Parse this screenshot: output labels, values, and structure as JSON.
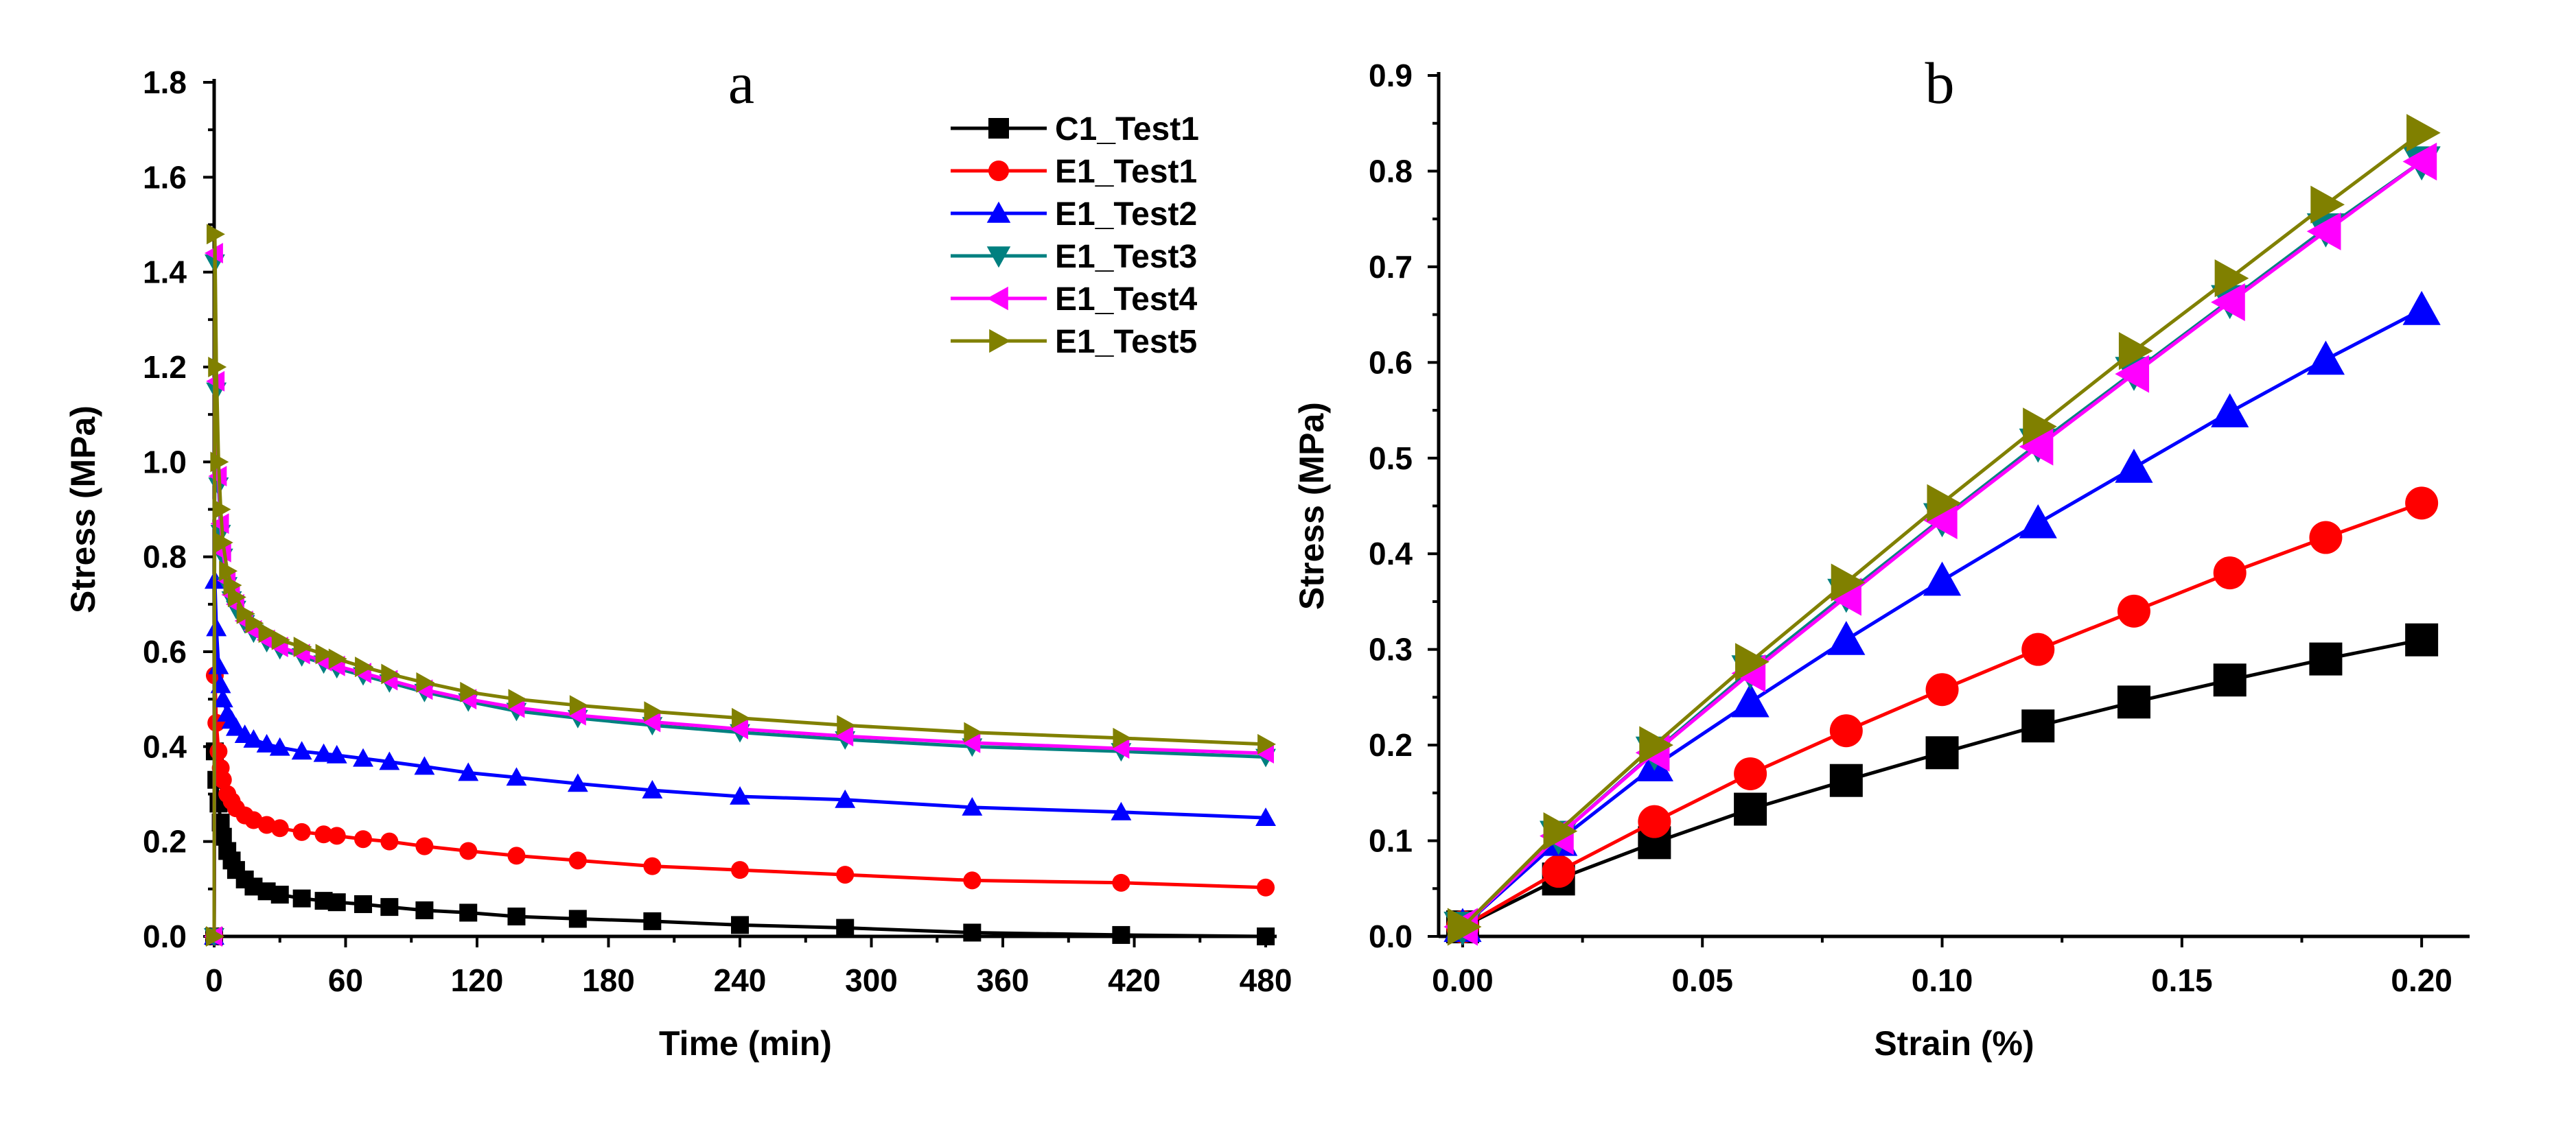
{
  "chart_data": [
    {
      "panel": "a",
      "type": "line",
      "title": "a",
      "xlabel": "Time (min)",
      "ylabel": "Stress (MPa)",
      "xlim": [
        0,
        485
      ],
      "ylim": [
        0,
        1.8
      ],
      "xticks": [
        0,
        60,
        120,
        180,
        240,
        300,
        360,
        420,
        480
      ],
      "yticks": [
        0.0,
        0.2,
        0.4,
        0.6,
        0.8,
        1.0,
        1.2,
        1.4,
        1.6,
        1.8
      ],
      "ytick_labels": [
        "0.0",
        "0.2",
        "0.4",
        "0.6",
        "0.8",
        "1.0",
        "1.2",
        "1.4",
        "1.6",
        "1.8"
      ],
      "legend_position": "top-right",
      "series": [
        {
          "name": "C1_Test1",
          "color": "#000000",
          "marker": "square",
          "x": [
            0,
            0.3,
            1,
            2,
            3,
            4,
            6,
            8,
            10,
            14,
            18,
            24,
            30,
            40,
            50,
            56,
            68,
            80,
            96,
            116,
            138,
            166,
            200,
            240,
            288,
            346,
            414,
            480
          ],
          "y": [
            0,
            0.39,
            0.33,
            0.28,
            0.24,
            0.21,
            0.18,
            0.16,
            0.14,
            0.12,
            0.105,
            0.095,
            0.088,
            0.08,
            0.075,
            0.072,
            0.068,
            0.062,
            0.055,
            0.05,
            0.042,
            0.037,
            0.032,
            0.024,
            0.018,
            0.008,
            0.003,
            0.0
          ]
        },
        {
          "name": "E1_Test1",
          "color": "#ff0000",
          "marker": "circle",
          "x": [
            0,
            0.3,
            1,
            2,
            3,
            4,
            6,
            8,
            10,
            14,
            18,
            24,
            30,
            40,
            50,
            56,
            68,
            80,
            96,
            116,
            138,
            166,
            200,
            240,
            288,
            346,
            414,
            480
          ],
          "y": [
            0,
            0.55,
            0.45,
            0.39,
            0.355,
            0.33,
            0.3,
            0.285,
            0.27,
            0.255,
            0.245,
            0.235,
            0.228,
            0.22,
            0.215,
            0.212,
            0.205,
            0.2,
            0.19,
            0.18,
            0.17,
            0.16,
            0.148,
            0.14,
            0.13,
            0.118,
            0.113,
            0.103
          ]
        },
        {
          "name": "E1_Test2",
          "color": "#0000ff",
          "marker": "triangle-up",
          "x": [
            0,
            0.3,
            1,
            2,
            3,
            4,
            6,
            8,
            10,
            14,
            18,
            24,
            30,
            40,
            50,
            56,
            68,
            80,
            96,
            116,
            138,
            166,
            200,
            240,
            288,
            346,
            414,
            480
          ],
          "y": [
            0,
            0.75,
            0.65,
            0.57,
            0.53,
            0.5,
            0.47,
            0.455,
            0.44,
            0.425,
            0.415,
            0.405,
            0.398,
            0.39,
            0.385,
            0.382,
            0.375,
            0.368,
            0.358,
            0.345,
            0.335,
            0.322,
            0.308,
            0.295,
            0.288,
            0.272,
            0.262,
            0.25
          ]
        },
        {
          "name": "E1_Test3",
          "color": "#008080",
          "marker": "triangle-down",
          "x": [
            0,
            0.3,
            1,
            2,
            3,
            4,
            6,
            8,
            10,
            14,
            18,
            24,
            30,
            40,
            50,
            56,
            68,
            80,
            96,
            116,
            138,
            166,
            200,
            240,
            288,
            346,
            414,
            480
          ],
          "y": [
            0,
            1.42,
            1.15,
            0.95,
            0.85,
            0.8,
            0.74,
            0.71,
            0.69,
            0.66,
            0.64,
            0.62,
            0.605,
            0.59,
            0.575,
            0.565,
            0.55,
            0.535,
            0.515,
            0.495,
            0.475,
            0.46,
            0.445,
            0.43,
            0.415,
            0.4,
            0.39,
            0.378
          ]
        },
        {
          "name": "E1_Test4",
          "color": "#ff00ff",
          "marker": "triangle-left",
          "x": [
            0,
            0.3,
            1,
            2,
            3,
            4,
            6,
            8,
            10,
            14,
            18,
            24,
            30,
            40,
            50,
            56,
            68,
            80,
            96,
            116,
            138,
            166,
            200,
            240,
            288,
            346,
            414,
            480
          ],
          "y": [
            0,
            1.44,
            1.17,
            0.97,
            0.87,
            0.81,
            0.75,
            0.72,
            0.7,
            0.665,
            0.645,
            0.625,
            0.61,
            0.595,
            0.58,
            0.57,
            0.555,
            0.54,
            0.52,
            0.5,
            0.482,
            0.466,
            0.452,
            0.437,
            0.422,
            0.408,
            0.396,
            0.386
          ]
        },
        {
          "name": "E1_Test5",
          "color": "#808000",
          "marker": "triangle-right",
          "x": [
            0,
            0.3,
            1,
            2,
            3,
            4,
            6,
            8,
            10,
            14,
            18,
            24,
            30,
            40,
            50,
            56,
            68,
            80,
            96,
            116,
            138,
            166,
            200,
            240,
            288,
            346,
            414,
            480
          ],
          "y": [
            0,
            1.48,
            1.2,
            1.0,
            0.9,
            0.83,
            0.77,
            0.74,
            0.715,
            0.68,
            0.66,
            0.64,
            0.625,
            0.61,
            0.595,
            0.585,
            0.568,
            0.553,
            0.535,
            0.515,
            0.5,
            0.487,
            0.474,
            0.46,
            0.445,
            0.43,
            0.418,
            0.405
          ]
        }
      ]
    },
    {
      "panel": "b",
      "type": "line",
      "title": "b",
      "xlabel": "Strain (%)",
      "ylabel": "Stress (MPa)",
      "xlim": [
        -0.005,
        0.21
      ],
      "ylim": [
        0,
        0.9
      ],
      "xticks": [
        0.0,
        0.05,
        0.1,
        0.15,
        0.2
      ],
      "xtick_labels": [
        "0.00",
        "0.05",
        "0.10",
        "0.15",
        "0.20"
      ],
      "yticks": [
        0.0,
        0.1,
        0.2,
        0.3,
        0.4,
        0.5,
        0.6,
        0.7,
        0.8,
        0.9
      ],
      "ytick_labels": [
        "0.0",
        "0.1",
        "0.2",
        "0.3",
        "0.4",
        "0.5",
        "0.6",
        "0.7",
        "0.8",
        "0.9"
      ],
      "series": [
        {
          "name": "C1_Test1",
          "color": "#000000",
          "marker": "square",
          "x": [
            0.0,
            0.02,
            0.04,
            0.06,
            0.08,
            0.1,
            0.12,
            0.14,
            0.16,
            0.18,
            0.2
          ],
          "y": [
            0.01,
            0.06,
            0.098,
            0.133,
            0.163,
            0.192,
            0.22,
            0.245,
            0.268,
            0.29,
            0.31
          ]
        },
        {
          "name": "E1_Test1",
          "color": "#ff0000",
          "marker": "circle",
          "x": [
            0.0,
            0.02,
            0.04,
            0.06,
            0.08,
            0.1,
            0.12,
            0.14,
            0.16,
            0.18,
            0.2
          ],
          "y": [
            0.01,
            0.068,
            0.12,
            0.17,
            0.215,
            0.258,
            0.3,
            0.34,
            0.38,
            0.417,
            0.453
          ]
        },
        {
          "name": "E1_Test2",
          "color": "#0000ff",
          "marker": "triangle-up",
          "x": [
            0.0,
            0.02,
            0.04,
            0.06,
            0.08,
            0.1,
            0.12,
            0.14,
            0.16,
            0.18,
            0.2
          ],
          "y": [
            0.01,
            0.1,
            0.178,
            0.245,
            0.31,
            0.372,
            0.432,
            0.49,
            0.548,
            0.603,
            0.655
          ]
        },
        {
          "name": "E1_Test3",
          "color": "#008080",
          "marker": "triangle-down",
          "x": [
            0.0,
            0.02,
            0.04,
            0.06,
            0.08,
            0.1,
            0.12,
            0.14,
            0.16,
            0.18,
            0.2
          ],
          "y": [
            0.01,
            0.105,
            0.193,
            0.278,
            0.358,
            0.437,
            0.515,
            0.59,
            0.665,
            0.74,
            0.81
          ]
        },
        {
          "name": "E1_Test4",
          "color": "#ff00ff",
          "marker": "triangle-left",
          "x": [
            0.0,
            0.02,
            0.04,
            0.06,
            0.08,
            0.1,
            0.12,
            0.14,
            0.16,
            0.18,
            0.2
          ],
          "y": [
            0.01,
            0.105,
            0.192,
            0.275,
            0.355,
            0.435,
            0.512,
            0.588,
            0.663,
            0.737,
            0.81
          ]
        },
        {
          "name": "E1_Test5",
          "color": "#808000",
          "marker": "triangle-right",
          "x": [
            0.0,
            0.02,
            0.04,
            0.06,
            0.08,
            0.1,
            0.12,
            0.14,
            0.16,
            0.18,
            0.2
          ],
          "y": [
            0.01,
            0.11,
            0.2,
            0.287,
            0.37,
            0.453,
            0.533,
            0.612,
            0.688,
            0.765,
            0.84
          ]
        }
      ]
    }
  ]
}
